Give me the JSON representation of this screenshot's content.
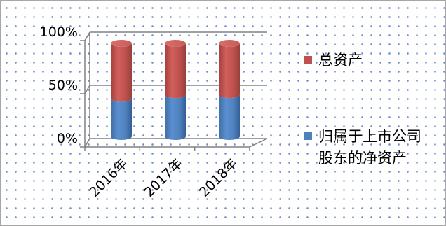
{
  "chart_data": {
    "type": "bar",
    "stacked": "percent",
    "categories": [
      "2016年",
      "2017年",
      "2018年"
    ],
    "series": [
      {
        "name": "归属于上市公司股东的净资产",
        "values": [
          41,
          45,
          45
        ],
        "color": "#4f81bd"
      },
      {
        "name": "总资产",
        "values": [
          59,
          55,
          55
        ],
        "color": "#c0504d"
      }
    ],
    "yticks": [
      "0%",
      "50%",
      "100%"
    ],
    "ylim": [
      0,
      100
    ],
    "legend_position": "right",
    "grid": true,
    "style": "3d-cylinder"
  }
}
